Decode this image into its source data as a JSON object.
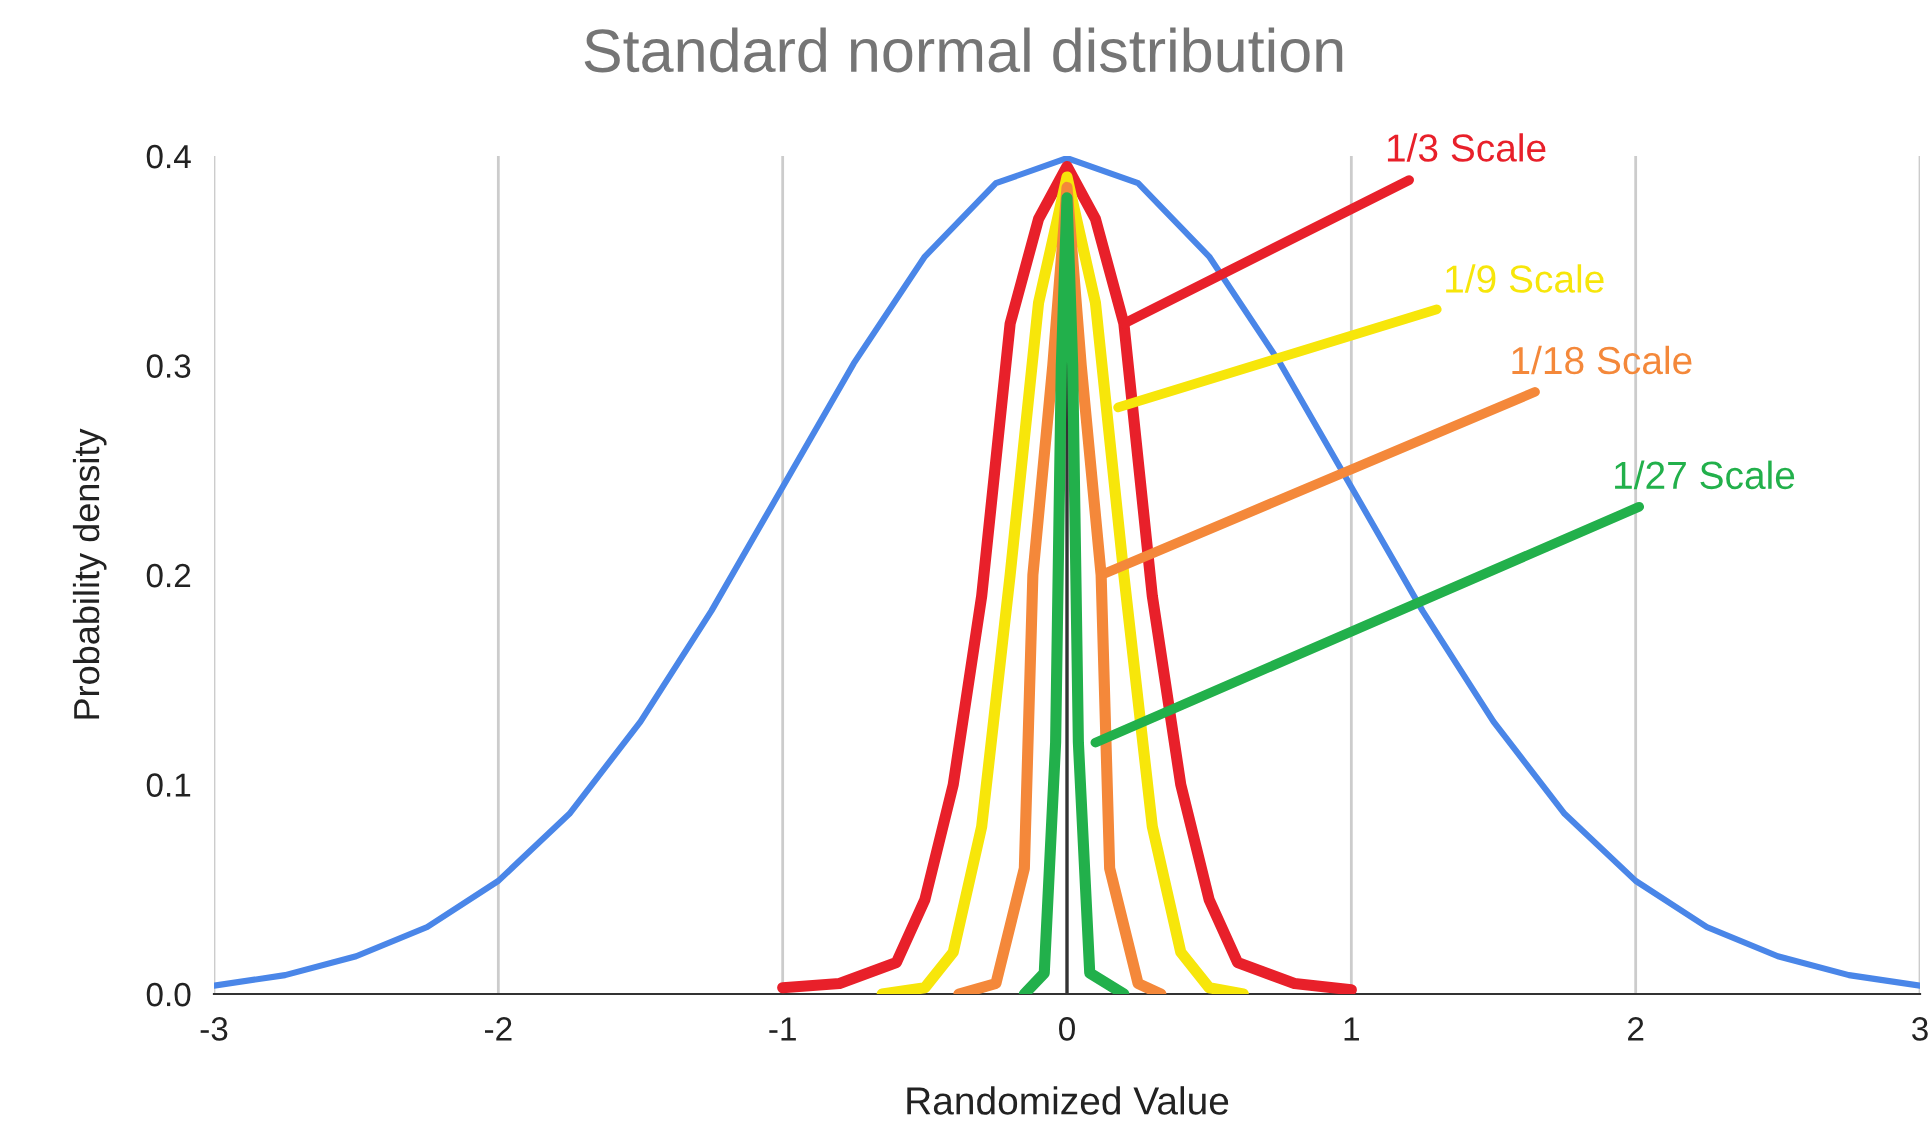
{
  "chart_data": {
    "type": "line",
    "title": "Standard normal distribution",
    "xlabel": "Randomized Value",
    "ylabel": "Probability density",
    "xlim": [
      -3,
      3
    ],
    "xticks": [
      -3,
      -2,
      -1,
      0,
      1,
      2,
      3
    ],
    "ylim": [
      0,
      0.4
    ],
    "yticks": [
      {
        "value": 0,
        "label": "0.0"
      },
      0.1,
      0.2,
      0.3,
      0.4
    ],
    "grid": "x",
    "legend": false,
    "marker": "none",
    "line_style": "solid",
    "ref_lines": [
      {
        "axis": "x",
        "value": 0,
        "color": "#333333"
      }
    ],
    "series": [
      {
        "color": "#4a86e8",
        "x": [
          -3,
          -2.75,
          -2.5,
          -2.25,
          -2,
          -1.75,
          -1.5,
          -1.25,
          -1,
          -0.75,
          -0.5,
          -0.25,
          0,
          0.25,
          0.5,
          0.75,
          1,
          1.25,
          1.5,
          1.75,
          2,
          2.25,
          2.5,
          2.75,
          3
        ],
        "values": [
          0.004,
          0.009,
          0.018,
          0.032,
          0.054,
          0.086,
          0.13,
          0.183,
          0.242,
          0.301,
          0.352,
          0.387,
          0.399,
          0.387,
          0.352,
          0.301,
          0.242,
          0.183,
          0.13,
          0.086,
          0.054,
          0.032,
          0.018,
          0.009,
          0.004
        ]
      },
      {
        "color": "#e8202a",
        "x": [
          -1,
          -0.8,
          -0.6,
          -0.5,
          -0.4,
          -0.3,
          -0.2,
          -0.1,
          0,
          0.1,
          0.2,
          0.3,
          0.4,
          0.5,
          0.6,
          0.8,
          1
        ],
        "values": [
          0.003,
          0.005,
          0.015,
          0.045,
          0.1,
          0.19,
          0.32,
          0.37,
          0.395,
          0.37,
          0.32,
          0.19,
          0.1,
          0.045,
          0.015,
          0.005,
          0.002
        ]
      },
      {
        "color": "#f7e60a",
        "x": [
          -0.65,
          -0.5,
          -0.4,
          -0.3,
          -0.2,
          -0.1,
          0,
          0.1,
          0.2,
          0.3,
          0.4,
          0.5,
          0.62
        ],
        "values": [
          0,
          0.003,
          0.02,
          0.08,
          0.2,
          0.33,
          0.39,
          0.33,
          0.2,
          0.08,
          0.02,
          0.003,
          0
        ]
      },
      {
        "color": "#f4883a",
        "x": [
          -0.38,
          -0.25,
          -0.15,
          -0.12,
          -0.05,
          0,
          0.05,
          0.12,
          0.15,
          0.25,
          0.33
        ],
        "values": [
          0,
          0.005,
          0.06,
          0.2,
          0.3,
          0.385,
          0.3,
          0.2,
          0.06,
          0.005,
          0
        ]
      },
      {
        "color": "#22b04b",
        "x": [
          -0.15,
          -0.08,
          -0.04,
          -0.02,
          0,
          0.02,
          0.04,
          0.08,
          0.2
        ],
        "values": [
          0,
          0.01,
          0.12,
          0.3,
          0.38,
          0.3,
          0.12,
          0.01,
          0
        ]
      }
    ],
    "annotations": [
      {
        "text": "1/3 Scale",
        "x": 0.2,
        "y": 0.32
      },
      {
        "text": "1/9 Scale",
        "x": 0.18,
        "y": 0.28
      },
      {
        "text": "1/18 Scale",
        "x": 0.12,
        "y": 0.2
      },
      {
        "text": "1/27 Scale",
        "x": 0.1,
        "y": 0.12
      }
    ]
  }
}
